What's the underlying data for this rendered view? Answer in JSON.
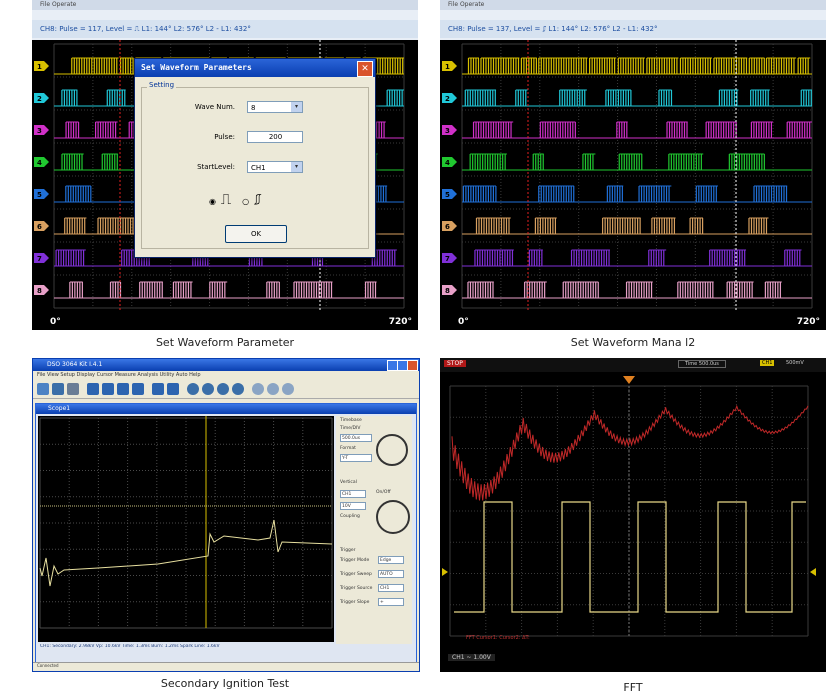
{
  "panels": {
    "top_left": {
      "caption": "Set Waveform Parameter",
      "menu": "File  Operate",
      "status_bar": "CH8: Pulse = 117, Level = ⎍      L1: 144°   L2: 576°   L2 - L1: 432°",
      "cursor_labels": [
        "L1",
        "L2"
      ],
      "deg_start": "0°",
      "deg_end": "720°",
      "channel_labels": [
        "1",
        "2",
        "3",
        "4",
        "5",
        "6",
        "7",
        "8"
      ],
      "channel_colors": [
        "#d8c000",
        "#20c8d8",
        "#d030c8",
        "#20c830",
        "#2070d8",
        "#d8a060",
        "#8030d8",
        "#e8a0c8"
      ],
      "dialog": {
        "title": "Set Waveform Parameters",
        "close_glyph": "✕",
        "group_label": "Setting",
        "wave_num_label": "Wave Num.",
        "wave_num_value": "8",
        "pulse_label": "Pulse:",
        "pulse_value": "200",
        "start_level_label": "StartLevel:",
        "start_level_value": "CH1",
        "rising_glyph": "⎍",
        "falling_glyph": "⎎",
        "ok_label": "OK",
        "dropdown_glyph": "▾"
      }
    },
    "top_right": {
      "caption": "Set Waveform Mana l2",
      "menu": "File  Operate",
      "status_bar": "CH8: Pulse = 137, Level = ⎎      L1: 144°   L2: 576°   L2 - L1: 432°",
      "cursor_labels": [
        "L1",
        "L2"
      ],
      "deg_start": "0°",
      "deg_end": "720°"
    },
    "bottom_left": {
      "caption": "Secondary Ignition Test",
      "window_title": "DSO 3064 Kit I.4.1",
      "menu": "File  View  Setup  Display  Cursor  Measure  Analysis  Utility  Auto  Help",
      "inner_title": "Scope1",
      "status_line": "CH1: Secondary: 2.98kV  Vp: 10.6kV  Time: 1.3ms  Burn: 1.2ms  Spark Line: 1.6kV",
      "statusbar_text": "Connected",
      "side_labels": {
        "timebase": "Timebase",
        "time_div": "Time/DIV",
        "time_div_value": "500.0us",
        "format": "Format",
        "format_value": "Y-T",
        "vertical": "Vertical",
        "ch": "CH1",
        "volt": "10V",
        "on_off": "On/Off",
        "coupling": "Coupling",
        "trigger": "Trigger",
        "trigger_mode": "Trigger Mode",
        "trigger_mode_value": "Edge",
        "trigger_sweep": "Trigger Sweep",
        "trigger_sweep_value": "AUTO",
        "trigger_source": "Trigger Source",
        "trigger_source_value": "CH1",
        "trigger_slope": "Trigger Slope",
        "trigger_slope_value": "+"
      },
      "knob_colors": [
        "#2040d8",
        "#f8f020"
      ]
    },
    "bottom_right": {
      "caption": "FFT",
      "top_text": "STOP",
      "time_text": "Time 500.0us",
      "ch_text": "CH1",
      "ch_val": "500mV",
      "bottom_text": "CH1 ~ 1.00V",
      "measure_text": "FFT    Cursor1:   Cursor2:   ΔT:"
    }
  }
}
